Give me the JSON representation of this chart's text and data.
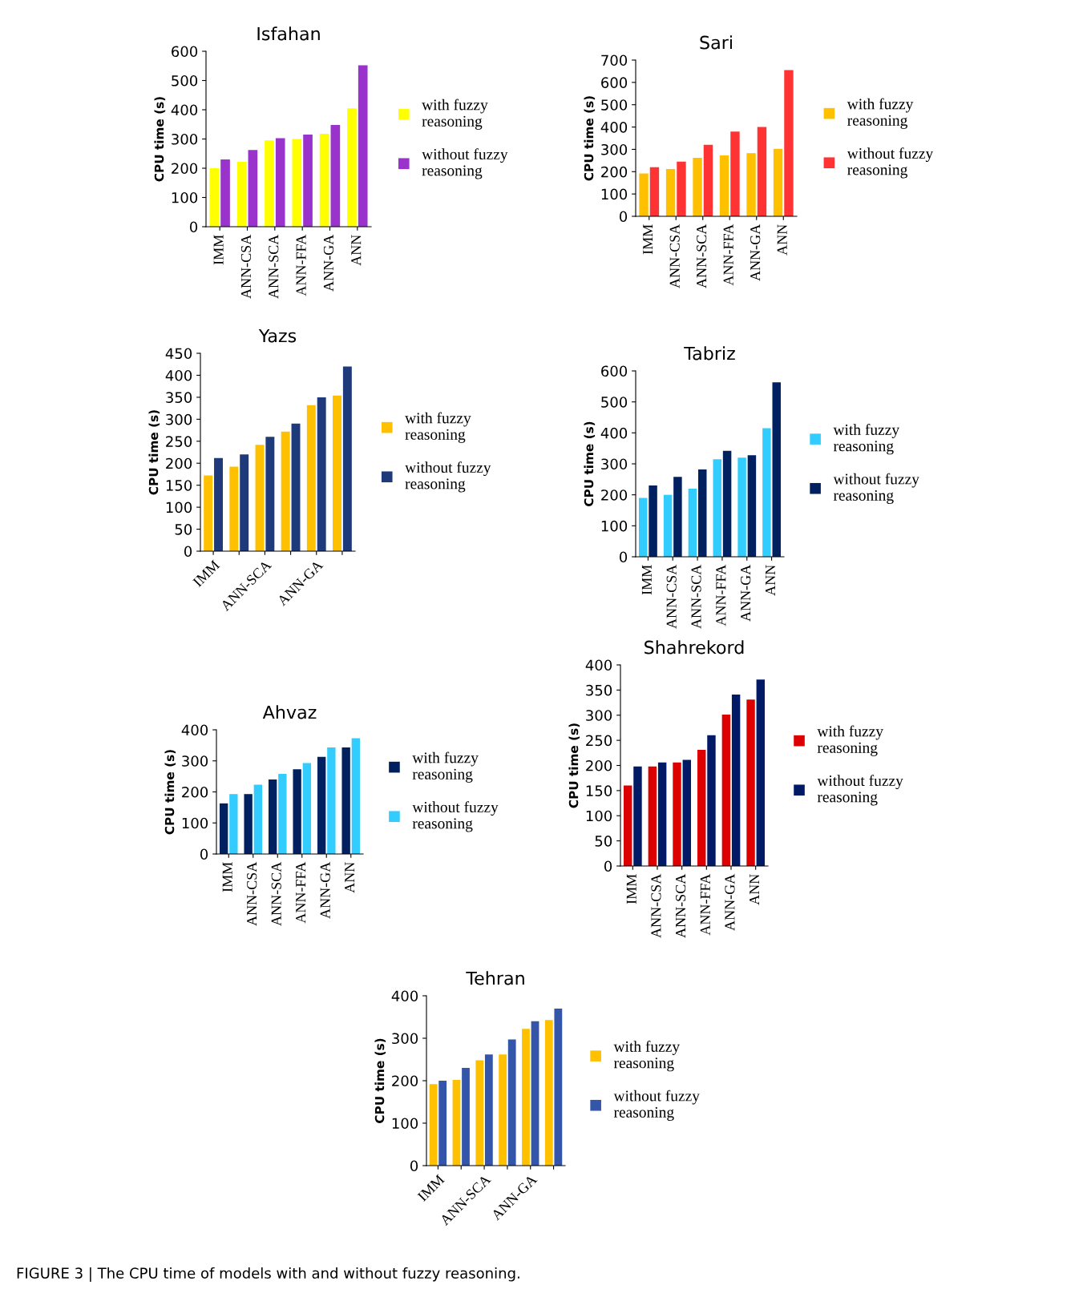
{
  "chart_data": [
    {
      "type": "bar",
      "title": "Isfahan",
      "ylabel": "CPU time (s)",
      "categories": [
        "IMM",
        "ANN-CSA",
        "ANN-SCA",
        "ANN-FFA",
        "ANN-GA",
        "ANN"
      ],
      "ylim": [
        0,
        600
      ],
      "yticks": [
        0,
        100,
        200,
        300,
        400,
        500,
        600
      ],
      "legend": "right",
      "grid": false,
      "series": [
        {
          "name": "with fuzzy reasoning",
          "color": "#ffff00",
          "values": [
            200,
            222,
            295,
            300,
            318,
            405
          ]
        },
        {
          "name": "without fuzzy reasoning",
          "color": "#9933cc",
          "values": [
            230,
            262,
            303,
            315,
            348,
            552
          ]
        }
      ]
    },
    {
      "type": "bar",
      "title": "Sari",
      "ylabel": "CPU time (s)",
      "categories": [
        "IMM",
        "ANN-CSA",
        "ANN-SCA",
        "ANN-FFA",
        "ANN-GA",
        "ANN"
      ],
      "ylim": [
        0,
        700
      ],
      "yticks": [
        0,
        100,
        200,
        300,
        400,
        500,
        600,
        700
      ],
      "legend": "right",
      "grid": false,
      "series": [
        {
          "name": "with fuzzy reasoning",
          "color": "#ffc000",
          "values": [
            192,
            212,
            262,
            273,
            283,
            302
          ]
        },
        {
          "name": "without fuzzy reasoning",
          "color": "#ff3333",
          "values": [
            220,
            245,
            320,
            380,
            400,
            655
          ]
        }
      ]
    },
    {
      "type": "bar",
      "title": "Yazs",
      "ylabel": "CPU time (s)",
      "categories": [
        "IMM",
        null,
        "ANN-SCA",
        null,
        "ANN-GA",
        null
      ],
      "ylim": [
        0,
        450
      ],
      "yticks": [
        0,
        50,
        100,
        150,
        200,
        250,
        300,
        350,
        400,
        450
      ],
      "legend": "right",
      "grid": false,
      "series": [
        {
          "name": "with fuzzy reasoning",
          "color": "#ffc000",
          "values": [
            172,
            192,
            242,
            272,
            332,
            354
          ]
        },
        {
          "name": "without fuzzy reasoning",
          "color": "#1f3a7a",
          "values": [
            212,
            220,
            260,
            290,
            350,
            420
          ]
        }
      ]
    },
    {
      "type": "bar",
      "title": "Tabriz",
      "ylabel": "CPU time (s)",
      "categories": [
        "IMM",
        "ANN-CSA",
        "ANN-SCA",
        "ANN-FFA",
        "ANN-GA",
        "ANN"
      ],
      "ylim": [
        0,
        600
      ],
      "yticks": [
        0,
        100,
        200,
        300,
        400,
        500,
        600
      ],
      "legend": "right",
      "grid": false,
      "series": [
        {
          "name": "with fuzzy reasoning",
          "color": "#33ccff",
          "values": [
            190,
            200,
            220,
            315,
            320,
            415
          ]
        },
        {
          "name": "without fuzzy reasoning",
          "color": "#002060",
          "values": [
            230,
            258,
            282,
            342,
            328,
            563
          ]
        }
      ]
    },
    {
      "type": "bar",
      "title": "Ahvaz",
      "ylabel": "CPU time (s)",
      "categories": [
        "IMM",
        "ANN-CSA",
        "ANN-SCA",
        "ANN-FFA",
        "ANN-GA",
        "ANN"
      ],
      "ylim": [
        0,
        400
      ],
      "yticks": [
        0,
        100,
        200,
        300,
        400
      ],
      "legend": "right",
      "grid": false,
      "series": [
        {
          "name": "with fuzzy reasoning",
          "color": "#002060",
          "values": [
            163,
            193,
            240,
            273,
            313,
            343
          ]
        },
        {
          "name": "without fuzzy reasoning",
          "color": "#33ccff",
          "values": [
            193,
            223,
            258,
            293,
            343,
            373
          ]
        }
      ]
    },
    {
      "type": "bar",
      "title": "Shahrekord",
      "ylabel": "CPU time (s)",
      "categories": [
        "IMM",
        "ANN-CSA",
        "ANN-SCA",
        "ANN-FFA",
        "ANN-GA",
        "ANN"
      ],
      "ylim": [
        0,
        400
      ],
      "yticks": [
        0,
        50,
        100,
        150,
        200,
        250,
        300,
        350,
        400
      ],
      "legend": "right",
      "grid": false,
      "series": [
        {
          "name": "with fuzzy reasoning",
          "color": "#dd0000",
          "values": [
            160,
            198,
            206,
            231,
            301,
            331
          ]
        },
        {
          "name": "without fuzzy reasoning",
          "color": "#001a66",
          "values": [
            198,
            206,
            211,
            260,
            341,
            371
          ]
        }
      ]
    },
    {
      "type": "bar",
      "title": "Tehran",
      "ylabel": "CPU time (s)",
      "categories": [
        "IMM",
        null,
        "ANN-SCA",
        null,
        "ANN-GA",
        null
      ],
      "ylim": [
        0,
        400
      ],
      "yticks": [
        0,
        100,
        200,
        300,
        400
      ],
      "legend": "right",
      "grid": false,
      "annotations": [
        "FIGURE 3 | The CPU time of models with and without fuzzy reasoning."
      ],
      "series": [
        {
          "name": "with fuzzy reasoning",
          "color": "#ffc000",
          "values": [
            192,
            202,
            248,
            262,
            322,
            343
          ]
        },
        {
          "name": "without fuzzy reasoning",
          "color": "#3355aa",
          "values": [
            200,
            230,
            262,
            297,
            340,
            370
          ]
        }
      ]
    }
  ]
}
